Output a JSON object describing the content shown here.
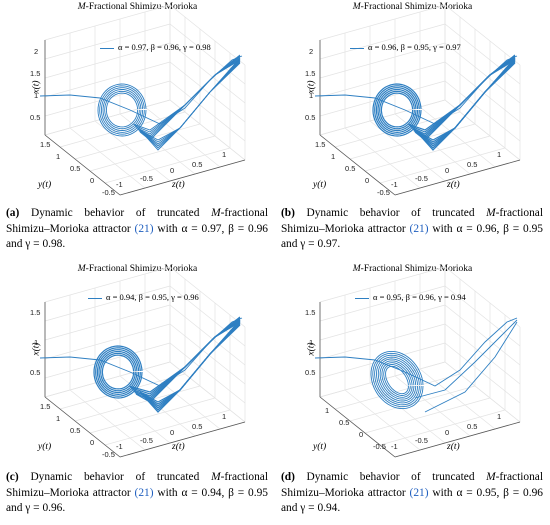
{
  "figures": [
    {
      "title_italic": "M",
      "title_rest": "-Fractional Shimizu-Morioka",
      "legend": "α = 0.97, β = 0.96, γ = 0.98",
      "xlabel": "y(t)",
      "ylabel": "z(t)",
      "zlabel": "x(t)",
      "y_ticks": [
        "1.5",
        "1",
        "0.5",
        "0",
        "-0.5"
      ],
      "z_ticks": [
        "-1",
        "-0.5",
        "0",
        "0.5",
        "1"
      ],
      "x_ticks": [
        "2",
        "1.5",
        "1",
        "0.5"
      ],
      "caption_label": "(a)",
      "caption_text_1": "Dynamic behavior of truncated ",
      "caption_italic": "M",
      "caption_text_2": "-fractional Shimizu–Morioka attractor ",
      "caption_ref": "(21)",
      "caption_text_3": " with α = 0.97, β = 0.96 and γ = 0.98."
    },
    {
      "title_italic": "M",
      "title_rest": "-Fractional Shimizu-Morioka",
      "legend": "α = 0.96, β = 0.95, γ = 0.97",
      "xlabel": "y(t)",
      "ylabel": "z(t)",
      "zlabel": "x(t)",
      "y_ticks": [
        "1.5",
        "1",
        "0.5",
        "0",
        "-0.5"
      ],
      "z_ticks": [
        "-1",
        "-0.5",
        "0",
        "0.5",
        "1"
      ],
      "x_ticks": [
        "2",
        "1.5",
        "1",
        "0.5"
      ],
      "caption_label": "(b)",
      "caption_text_1": "Dynamic behavior of truncated ",
      "caption_italic": "M",
      "caption_text_2": "-fractional Shimizu–Morioka attractor ",
      "caption_ref": "(21)",
      "caption_text_3": " with α = 0.96, β = 0.95 and γ = 0.97."
    },
    {
      "title_italic": "M",
      "title_rest": "-Fractional Shimizu-Morioka",
      "legend": "α = 0.94, β = 0.95, γ = 0.96",
      "xlabel": "y(t)",
      "ylabel": "z(t)",
      "zlabel": "x(t)",
      "y_ticks": [
        "1.5",
        "1",
        "0.5",
        "0",
        "-0.5"
      ],
      "z_ticks": [
        "-1",
        "-0.5",
        "0",
        "0.5",
        "1"
      ],
      "x_ticks": [
        "1.5",
        "1",
        "0.5"
      ],
      "caption_label": "(c)",
      "caption_text_1": "Dynamic behavior of truncated ",
      "caption_italic": "M",
      "caption_text_2": "-fractional Shimizu–Morioka attractor ",
      "caption_ref": "(21)",
      "caption_text_3": " with α = 0.94, β = 0.95 and γ = 0.96."
    },
    {
      "title_italic": "M",
      "title_rest": "-Fractional Shimizu-Morioka",
      "legend": "α = 0.95, β = 0.96, γ = 0.94",
      "xlabel": "y(t)",
      "ylabel": "z(t)",
      "zlabel": "x(t)",
      "y_ticks": [
        "1",
        "0.5",
        "0",
        "-0.5"
      ],
      "z_ticks": [
        "-1",
        "-0.5",
        "0",
        "0.5",
        "1"
      ],
      "x_ticks": [
        "1.5",
        "1",
        "0.5"
      ],
      "caption_label": "(d)",
      "caption_text_1": "Dynamic behavior of truncated ",
      "caption_italic": "M",
      "caption_text_2": "-fractional Shimizu–Morioka attractor ",
      "caption_ref": "(21)",
      "caption_text_3": " with α = 0.95, β = 0.96 and γ = 0.94."
    }
  ],
  "colors": {
    "trajectory": "#2e7fc2",
    "grid": "#e3e3e3",
    "axis": "#555555"
  }
}
